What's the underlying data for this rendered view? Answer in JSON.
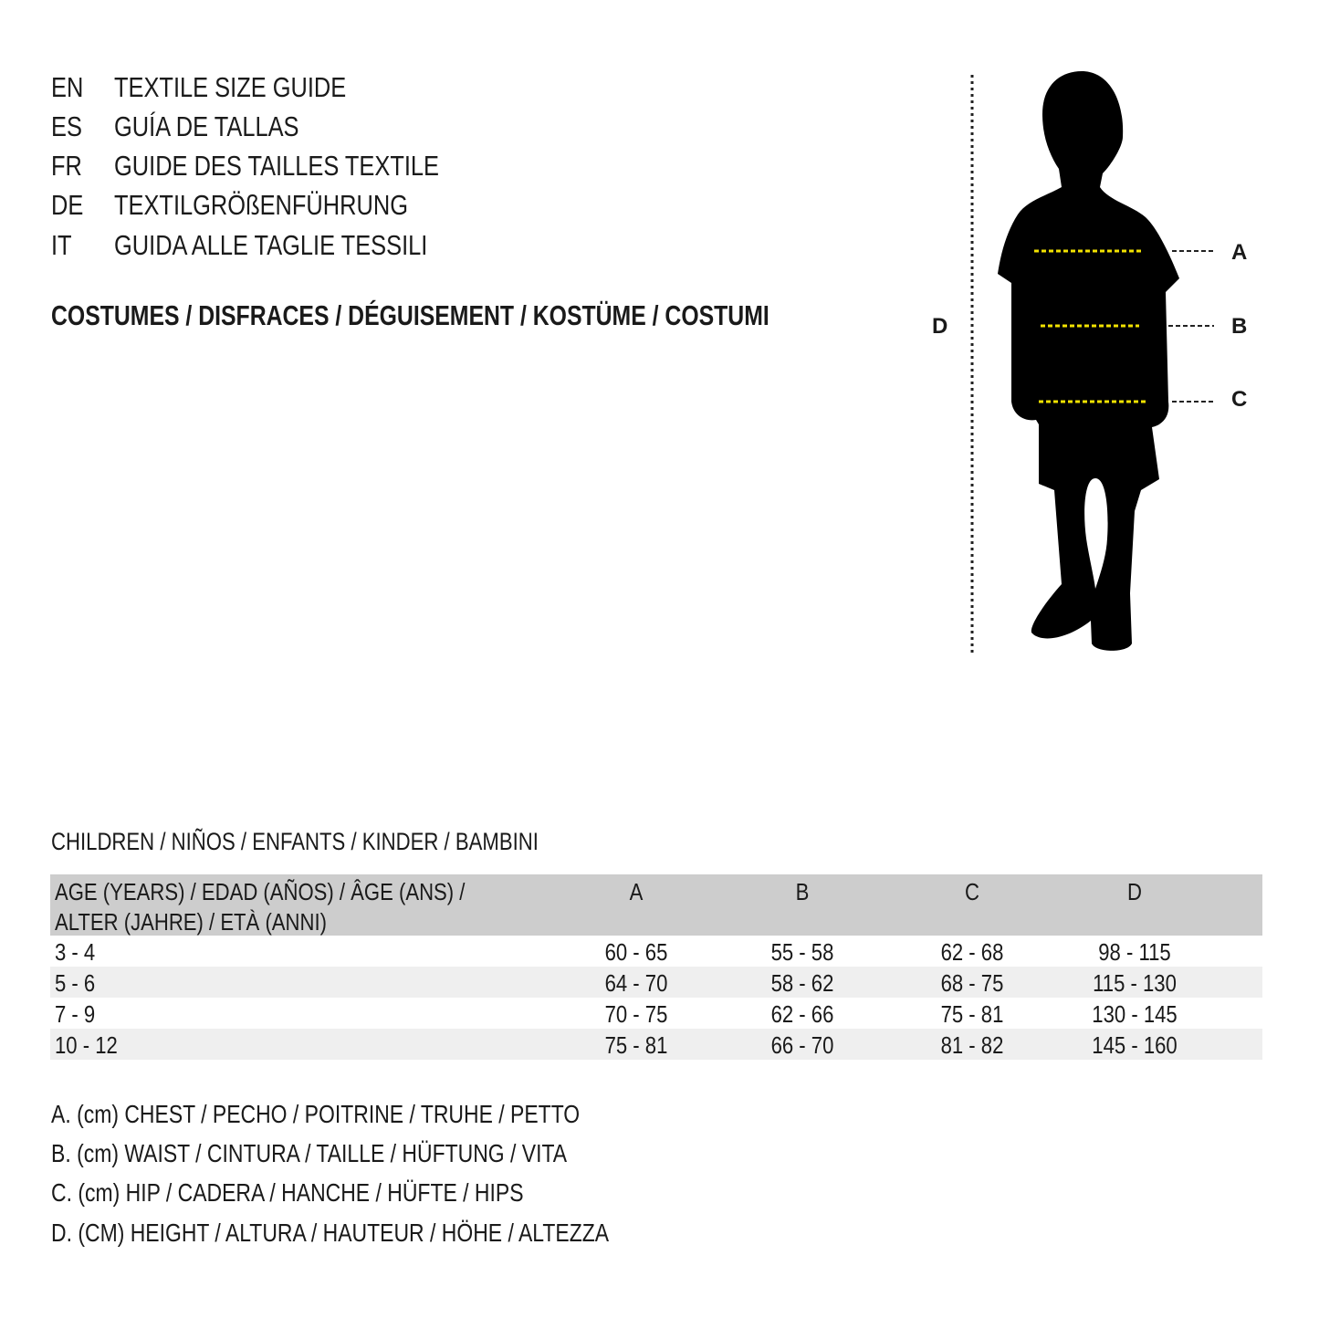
{
  "titles": [
    {
      "code": "EN",
      "text": "TEXTILE SIZE GUIDE"
    },
    {
      "code": "ES",
      "text": "GUÍA DE TALLAS"
    },
    {
      "code": "FR",
      "text": "GUIDE DES TAILLES TEXTILE"
    },
    {
      "code": "DE",
      "text": "TEXTILGRÖßENFÜHRUNG"
    },
    {
      "code": "IT",
      "text": "GUIDA ALLE TAGLIE TESSILI"
    }
  ],
  "category": "COSTUMES / DISFRACES / DÉGUISEMENT / KOSTÜME / COSTUMI",
  "figure": {
    "labels": {
      "a": "A",
      "b": "B",
      "c": "C",
      "d": "D"
    },
    "guide_color": "#f2e200"
  },
  "table": {
    "caption": "CHILDREN / NIÑOS / ENFANTS / KINDER / BAMBINI",
    "header": {
      "age_line1": "AGE (YEARS) / EDAD (AÑOS) / ÂGE (ANS) /",
      "age_line2": "ALTER (JAHRE) / ETÀ (ANNI)",
      "cols": [
        "A",
        "B",
        "C",
        "D"
      ]
    },
    "rows": [
      [
        "3 - 4",
        "60 - 65",
        "55 - 58",
        "62 - 68",
        "98 - 115"
      ],
      [
        "5 - 6",
        "64 - 70",
        "58 - 62",
        "68 - 75",
        "115 - 130"
      ],
      [
        "7 - 9",
        "70 - 75",
        "62 - 66",
        "75 - 81",
        "130 - 145"
      ],
      [
        "10 - 12",
        "75 - 81",
        "66 - 70",
        "81 - 82",
        "145 - 160"
      ]
    ],
    "header_bg": "#cdcdcd",
    "alt_row_bg": "#efefef"
  },
  "legend": [
    "A. (cm) CHEST / PECHO / POITRINE / TRUHE / PETTO",
    "B. (cm) WAIST / CINTURA / TAILLE / HÜFTUNG / VITA",
    "C. (cm) HIP / CADERA / HANCHE / HÜFTE / HIPS",
    "D. (CM) HEIGHT / ALTURA / HAUTEUR / HÖHE / ALTEZZA"
  ]
}
